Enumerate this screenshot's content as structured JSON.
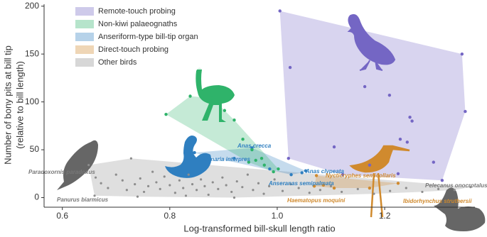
{
  "chart_data": {
    "type": "scatter",
    "xlabel": "Log-transformed bill-skull length ratio",
    "ylabel": [
      "Number of bony pits at bill tip",
      "(relative to bill length)"
    ],
    "xlim": [
      0.566,
      1.368
    ],
    "ylim": [
      -10,
      202
    ],
    "xticks": [
      0.6,
      0.8,
      {
        "value": 1,
        "label": "1.0"
      },
      1.2
    ],
    "yticks": [
      0,
      50,
      100,
      150,
      200
    ],
    "grid": false,
    "legend": "upper left",
    "series": [
      {
        "name": "Remote-touch probing",
        "color": "#7466c4",
        "x": [
          1.005,
          1.024,
          1.344,
          1.163,
          1.209,
          1.247,
          1.251,
          1.35,
          1.229,
          1.242,
          1.106,
          1.021,
          1.122,
          1.307,
          1.291,
          1.172,
          1.225
        ],
        "y": [
          195,
          136,
          150,
          116,
          107,
          84,
          80,
          90,
          61,
          58,
          53,
          41,
          24,
          18,
          37,
          34,
          25
        ]
      },
      {
        "name": "Non-kiwi palaeognaths",
        "color": "#2fb36a",
        "x": [
          0.793,
          0.838,
          0.878,
          0.902,
          0.92,
          0.936,
          0.953,
          0.96,
          0.976,
          0.993,
          1.002,
          0.971,
          0.947
        ],
        "y": [
          87,
          106,
          104,
          91,
          81,
          61,
          50,
          39,
          34,
          27,
          30,
          41,
          37
        ]
      },
      {
        "name": "Anseriform-type bill-tip organ",
        "color": "#2f7fc0",
        "x": [
          0.846,
          0.871,
          0.953,
          0.92,
          1.046,
          1.053,
          1.026,
          0.986
        ],
        "y": [
          47,
          43,
          52,
          41,
          26,
          28,
          24,
          30
        ]
      },
      {
        "name": "Direct-touch probing",
        "color": "#d08a2e",
        "x": [
          1.069,
          1.086,
          1.172,
          1.073,
          1.225,
          1.106
        ],
        "y": [
          12,
          13,
          10,
          23,
          15,
          10
        ]
      },
      {
        "name": "Other birds",
        "color": "#8c8c8c",
        "x": [
          0.649,
          0.662,
          0.672,
          0.685,
          0.7,
          0.712,
          0.72,
          0.728,
          0.735,
          0.745,
          0.752,
          0.76,
          0.768,
          0.775,
          0.782,
          0.79,
          0.8,
          0.81,
          0.818,
          0.825,
          0.835,
          0.842,
          0.85,
          0.858,
          0.865,
          0.872,
          0.88,
          0.89,
          0.898,
          0.905,
          0.915,
          0.925,
          0.935,
          0.945,
          0.955,
          0.965,
          0.975,
          0.985,
          0.995,
          1.01,
          1.025,
          1.04,
          1.06,
          1.08,
          1.1,
          1.12,
          1.15,
          1.18,
          1.21,
          1.24,
          1.27,
          1.3,
          1.33,
          1.36,
          0.66,
          0.74,
          0.83,
          0.92
        ],
        "y": [
          34,
          21,
          15,
          10,
          24,
          18,
          8,
          41,
          14,
          20,
          6,
          12,
          27,
          16,
          9,
          22,
          13,
          5,
          18,
          10,
          24,
          14,
          8,
          19,
          12,
          3,
          16,
          9,
          21,
          13,
          6,
          17,
          11,
          24,
          8,
          15,
          4,
          12,
          19,
          7,
          14,
          10,
          5,
          8,
          12,
          6,
          9,
          4,
          7,
          10,
          6,
          9,
          8,
          11,
          2,
          1,
          2,
          0
        ]
      }
    ],
    "annotations": [
      {
        "text": "Paradoxornis paradoxus",
        "color": "#777777"
      },
      {
        "text": "Panurus biarmicus",
        "color": "#777777"
      },
      {
        "text": "Arenaria interpres",
        "color": "#2f7fc0"
      },
      {
        "text": "Anas crecca",
        "color": "#2f7fc0"
      },
      {
        "text": "Anas clypeata",
        "color": "#2f7fc0"
      },
      {
        "text": "Anseranas semipalmata",
        "color": "#2f7fc0"
      },
      {
        "text": "Nycticryphes semicollaris",
        "color": "#d08a2e"
      },
      {
        "text": "Haematopus moquini",
        "color": "#d08a2e"
      },
      {
        "text": "Ibidorhynchus struthersii",
        "color": "#d08a2e"
      },
      {
        "text": "Pelecanus onocrotalus",
        "color": "#777777"
      }
    ]
  }
}
